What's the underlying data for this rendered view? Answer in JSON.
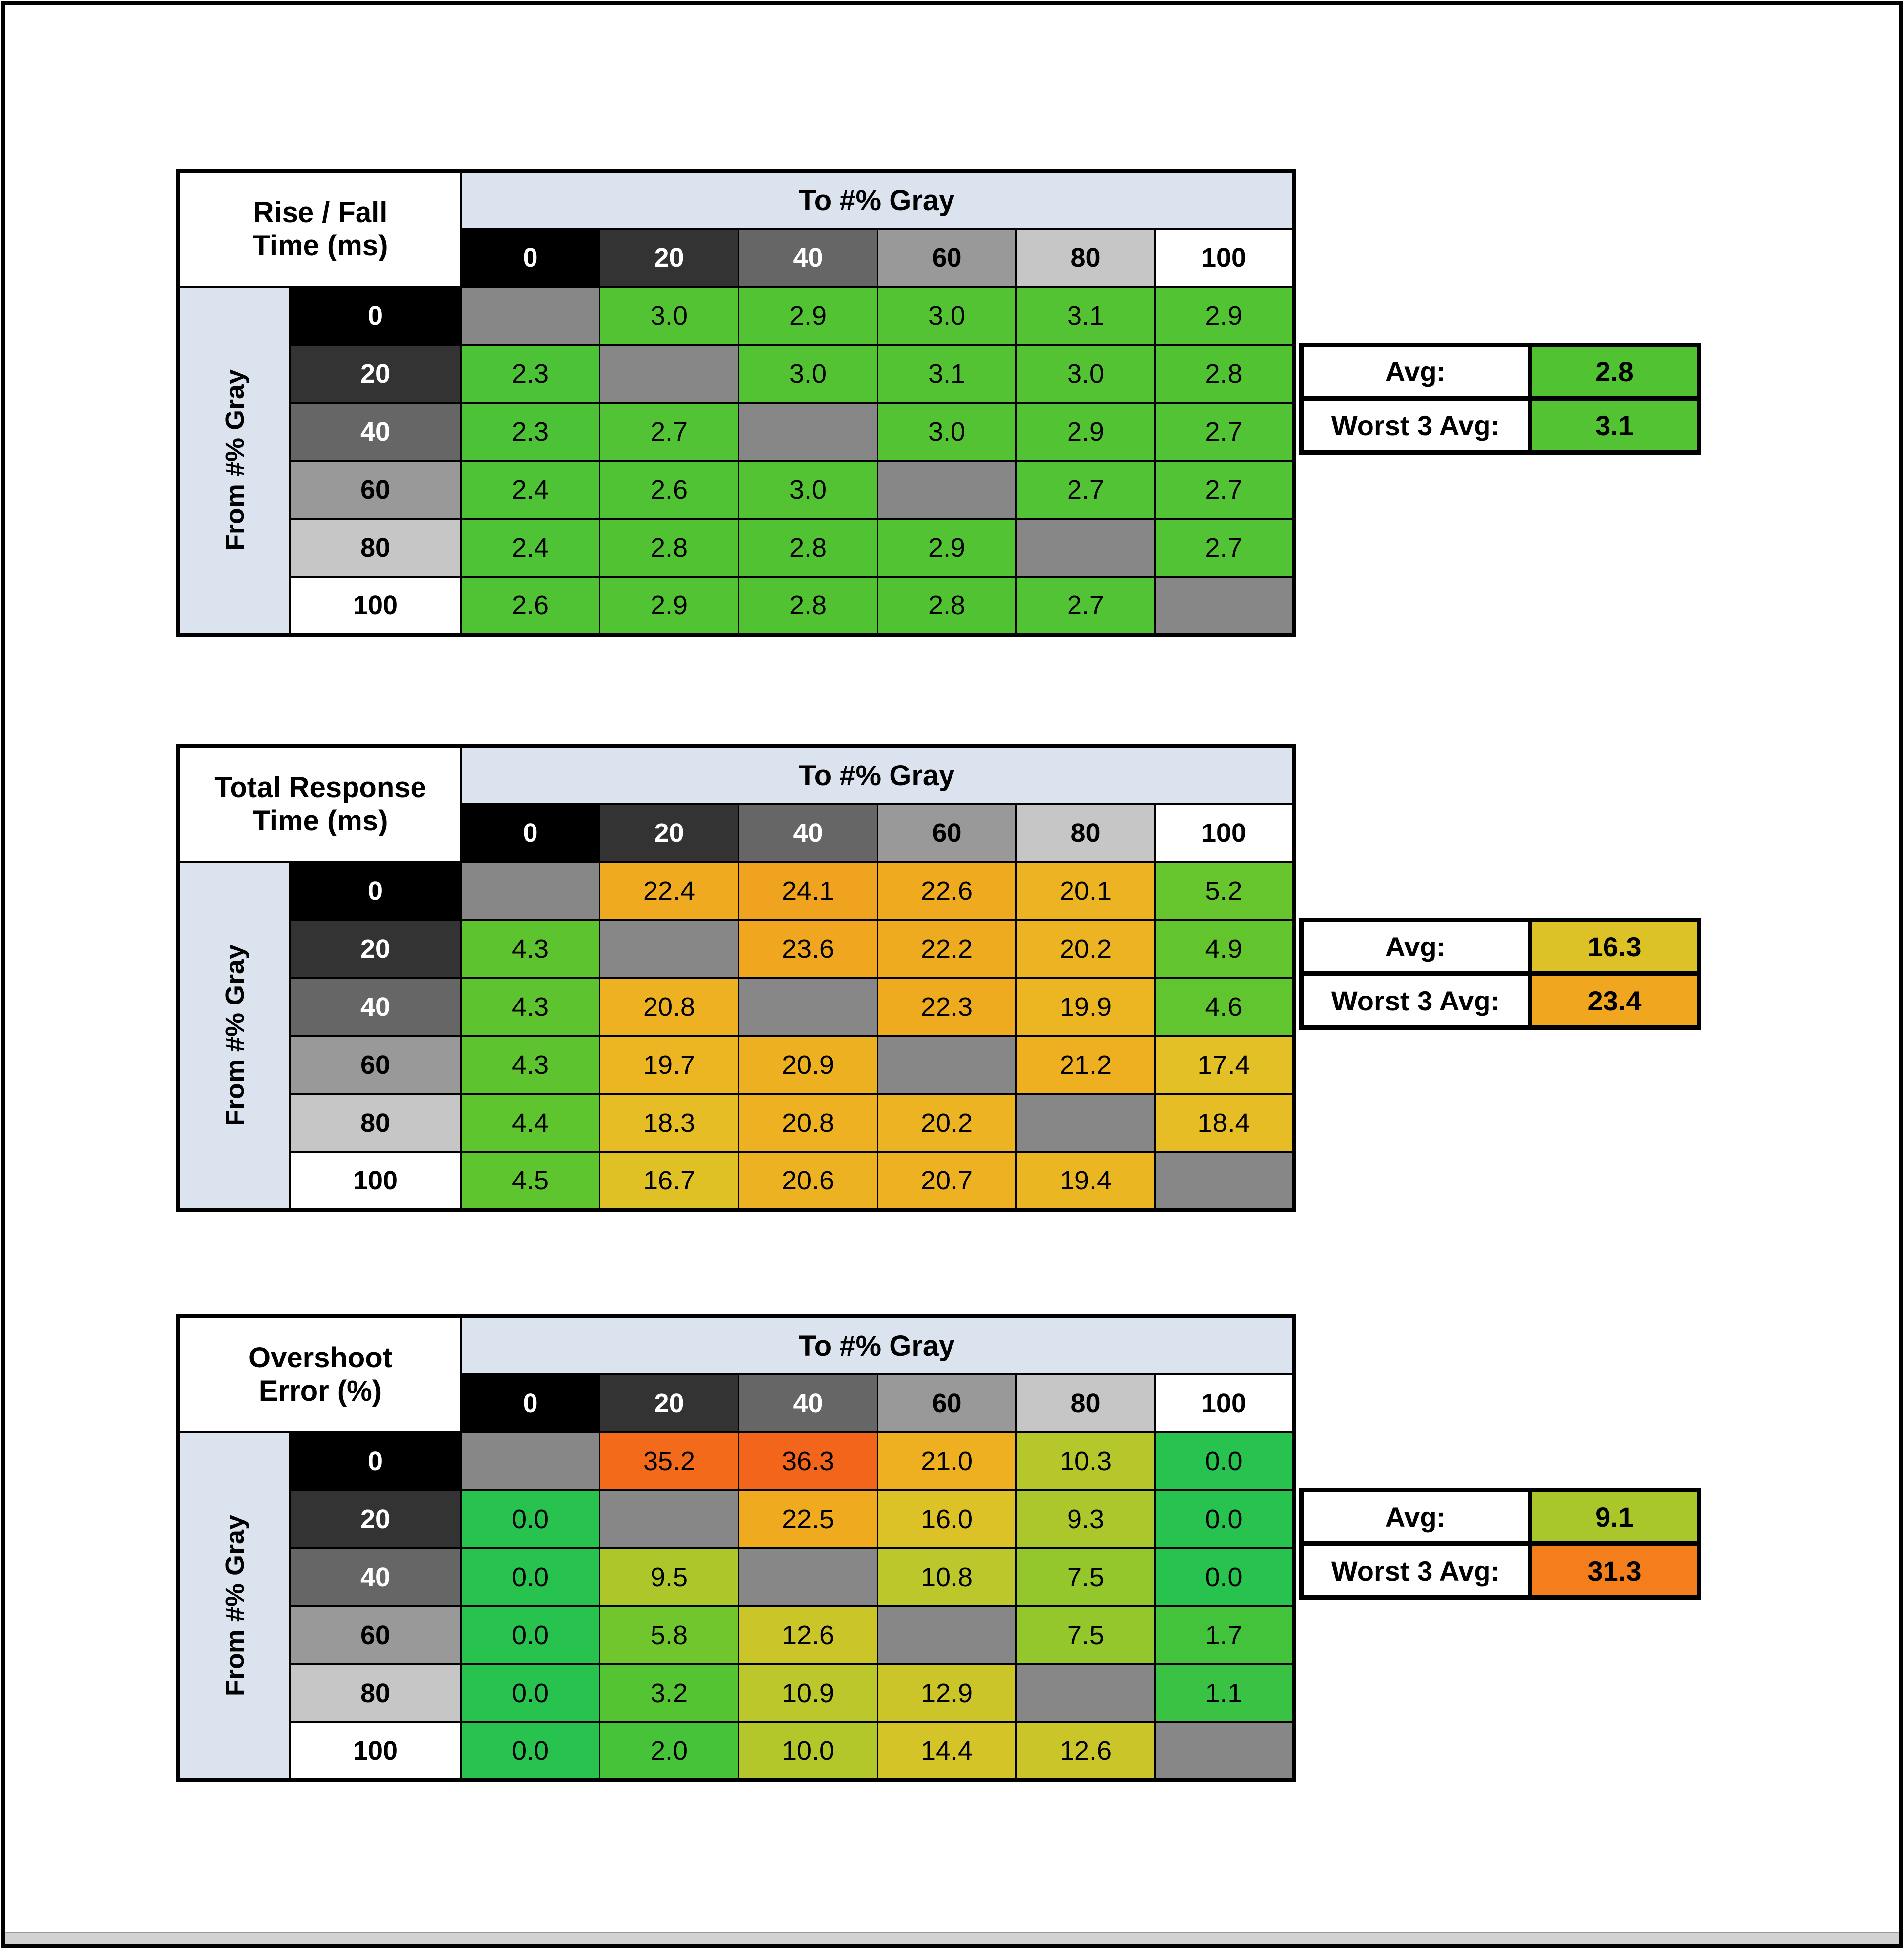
{
  "colors": {
    "header_blue": "#DAE3EE",
    "diagonal_gray": "#878787",
    "gray_levels": [
      "#000000",
      "#333333",
      "#666666",
      "#999999",
      "#C6C6C6",
      "#FFFFFF"
    ],
    "gray_text": [
      "#FFFFFF",
      "#FFFFFF",
      "#FFFFFF",
      "#000000",
      "#000000",
      "#000000"
    ],
    "scale_anchors": [
      [
        0,
        "#28C24E"
      ],
      [
        2.5,
        "#4FC334"
      ],
      [
        5,
        "#63C52E"
      ],
      [
        8,
        "#9CC72C"
      ],
      [
        10,
        "#B3C72B"
      ],
      [
        12,
        "#C6C62A"
      ],
      [
        14,
        "#D2C428"
      ],
      [
        16,
        "#DCC227"
      ],
      [
        18,
        "#E5BF25"
      ],
      [
        20,
        "#ECB422"
      ],
      [
        22,
        "#EFAC20"
      ],
      [
        24,
        "#F0A41F"
      ],
      [
        27,
        "#F2941D"
      ],
      [
        31,
        "#F47E1C"
      ],
      [
        34,
        "#F3701B"
      ],
      [
        37,
        "#F2621B"
      ]
    ]
  },
  "chart_data": [
    {
      "type": "heatmap",
      "title": "Rise / Fall Time (ms)",
      "title_lines": [
        "Rise / Fall",
        "Time (ms)"
      ],
      "x_label": "To #% Gray",
      "y_label": "From #% Gray",
      "categories": [
        "0",
        "20",
        "40",
        "60",
        "80",
        "100"
      ],
      "rows": [
        [
          null,
          "3.0",
          "2.9",
          "3.0",
          "3.1",
          "2.9"
        ],
        [
          "2.3",
          null,
          "3.0",
          "3.1",
          "3.0",
          "2.8"
        ],
        [
          "2.3",
          "2.7",
          null,
          "3.0",
          "2.9",
          "2.7"
        ],
        [
          "2.4",
          "2.6",
          "3.0",
          null,
          "2.7",
          "2.7"
        ],
        [
          "2.4",
          "2.8",
          "2.8",
          "2.9",
          null,
          "2.7"
        ],
        [
          "2.6",
          "2.9",
          "2.8",
          "2.8",
          "2.7",
          null
        ]
      ],
      "summary": {
        "avg_label": "Avg:",
        "avg": "2.8",
        "worst_label": "Worst 3 Avg:",
        "worst": "3.1"
      }
    },
    {
      "type": "heatmap",
      "title": "Total Response Time (ms)",
      "title_lines": [
        "Total Response",
        "Time (ms)"
      ],
      "x_label": "To #% Gray",
      "y_label": "From #% Gray",
      "categories": [
        "0",
        "20",
        "40",
        "60",
        "80",
        "100"
      ],
      "rows": [
        [
          null,
          "22.4",
          "24.1",
          "22.6",
          "20.1",
          "5.2"
        ],
        [
          "4.3",
          null,
          "23.6",
          "22.2",
          "20.2",
          "4.9"
        ],
        [
          "4.3",
          "20.8",
          null,
          "22.3",
          "19.9",
          "4.6"
        ],
        [
          "4.3",
          "19.7",
          "20.9",
          null,
          "21.2",
          "17.4"
        ],
        [
          "4.4",
          "18.3",
          "20.8",
          "20.2",
          null,
          "18.4"
        ],
        [
          "4.5",
          "16.7",
          "20.6",
          "20.7",
          "19.4",
          null
        ]
      ],
      "summary": {
        "avg_label": "Avg:",
        "avg": "16.3",
        "worst_label": "Worst 3 Avg:",
        "worst": "23.4"
      }
    },
    {
      "type": "heatmap",
      "title": "Overshoot Error (%)",
      "title_lines": [
        "Overshoot",
        "Error (%)"
      ],
      "x_label": "To #% Gray",
      "y_label": "From #% Gray",
      "categories": [
        "0",
        "20",
        "40",
        "60",
        "80",
        "100"
      ],
      "rows": [
        [
          null,
          "35.2",
          "36.3",
          "21.0",
          "10.3",
          "0.0"
        ],
        [
          "0.0",
          null,
          "22.5",
          "16.0",
          "9.3",
          "0.0"
        ],
        [
          "0.0",
          "9.5",
          null,
          "10.8",
          "7.5",
          "0.0"
        ],
        [
          "0.0",
          "5.8",
          "12.6",
          null,
          "7.5",
          "1.7"
        ],
        [
          "0.0",
          "3.2",
          "10.9",
          "12.9",
          null,
          "1.1"
        ],
        [
          "0.0",
          "2.0",
          "10.0",
          "14.4",
          "12.6",
          null
        ]
      ],
      "summary": {
        "avg_label": "Avg:",
        "avg": "9.1",
        "worst_label": "Worst 3 Avg:",
        "worst": "31.3"
      }
    }
  ]
}
